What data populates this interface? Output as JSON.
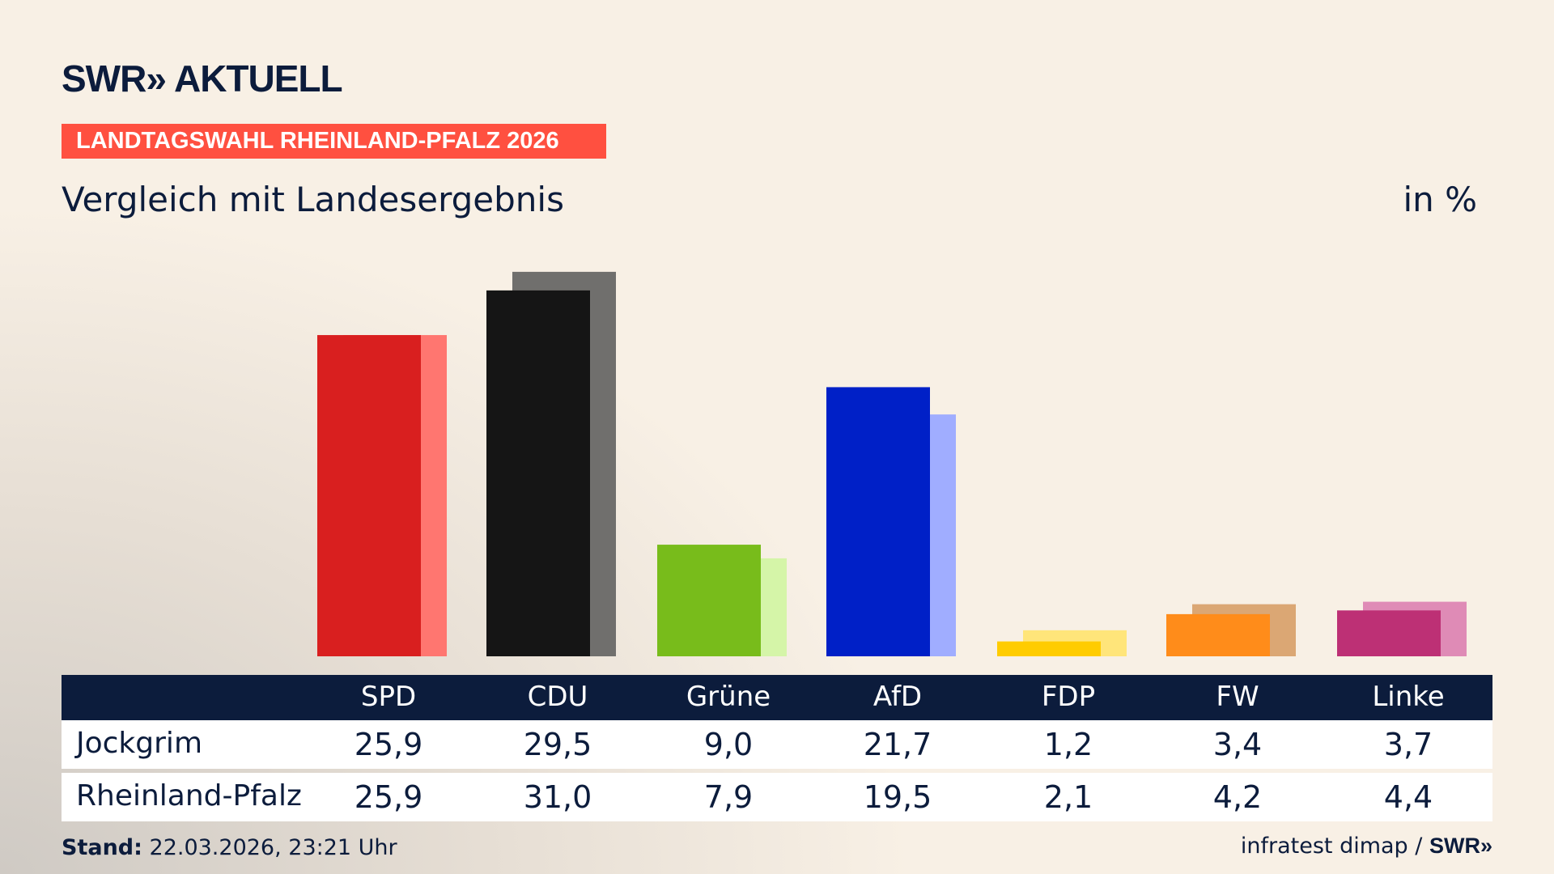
{
  "header": {
    "logo": "SWR» AKTUELL",
    "badge": "LANDTAGSWAHL RHEINLAND-PFALZ 2026",
    "subtitle": "Vergleich mit Landesergebnis",
    "unit": "in %"
  },
  "chart_data": {
    "type": "bar",
    "categories": [
      "SPD",
      "CDU",
      "Grüne",
      "AfD",
      "FDP",
      "FW",
      "Linke"
    ],
    "series": [
      {
        "name": "Jockgrim",
        "values": [
          25.9,
          29.5,
          9.0,
          21.7,
          1.2,
          3.4,
          3.7
        ],
        "display": [
          "25,9",
          "29,5",
          "9,0",
          "21,7",
          "1,2",
          "3,4",
          "3,7"
        ],
        "colors": [
          "#d91f1f",
          "#151515",
          "#78bc1b",
          "#0020c7",
          "#ffcc00",
          "#ff8c1a",
          "#bd3075"
        ]
      },
      {
        "name": "Rheinland-Pfalz",
        "values": [
          25.9,
          31.0,
          7.9,
          19.5,
          2.1,
          4.2,
          4.4
        ],
        "display": [
          "25,9",
          "31,0",
          "7,9",
          "19,5",
          "2,1",
          "4,2",
          "4,4"
        ],
        "colors": [
          "#ff7670",
          "#706f6d",
          "#d5f5a8",
          "#a0adff",
          "#ffe57a",
          "#dba774",
          "#df8bb6"
        ]
      }
    ],
    "ylim": [
      0,
      31
    ]
  },
  "footer": {
    "stand_label": "Stand:",
    "stand_value": "22.03.2026, 23:21 Uhr",
    "source": "infratest dimap /",
    "source_logo": "SWR»"
  }
}
